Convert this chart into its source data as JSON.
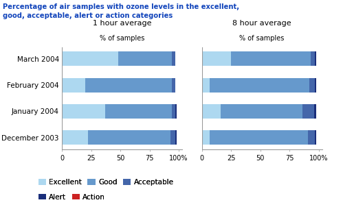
{
  "title_line1": "Percentage of air samples with ozone levels in the excellent,",
  "title_line2": "good, acceptable, alert or action categories",
  "title_color": "#1144bb",
  "categories": [
    "March 2004",
    "February 2004",
    "January 2004",
    "December 2003"
  ],
  "left_title": "1 hour average",
  "right_title": "8 hour average",
  "subtitle": "% of samples",
  "colors": {
    "Excellent": "#add8f0",
    "Good": "#6699cc",
    "Acceptable": "#4466aa",
    "Alert": "#1a2e7a",
    "Action": "#cc2222"
  },
  "left_data": {
    "Excellent": [
      48,
      20,
      37,
      22
    ],
    "Good": [
      46,
      74,
      57,
      71
    ],
    "Acceptable": [
      3,
      3,
      3,
      4
    ],
    "Alert": [
      0,
      0,
      1,
      1
    ],
    "Action": [
      0,
      0,
      0,
      0
    ]
  },
  "right_data": {
    "Excellent": [
      25,
      7,
      16,
      7
    ],
    "Good": [
      68,
      85,
      70,
      84
    ],
    "Acceptable": [
      4,
      5,
      10,
      6
    ],
    "Alert": [
      1,
      1,
      2,
      1
    ],
    "Action": [
      0,
      0,
      0,
      0
    ]
  },
  "xticks": [
    0,
    25,
    50,
    75,
    100
  ],
  "xtick_labels": [
    "0",
    "25",
    "50",
    "75",
    "100%"
  ],
  "bar_height": 0.55,
  "axis_color": "#999999",
  "font_size_title": 7.2,
  "font_size_label": 7.0,
  "font_size_chart_title": 8.0,
  "font_size_subtitle": 7.0,
  "font_size_legend": 7.5
}
